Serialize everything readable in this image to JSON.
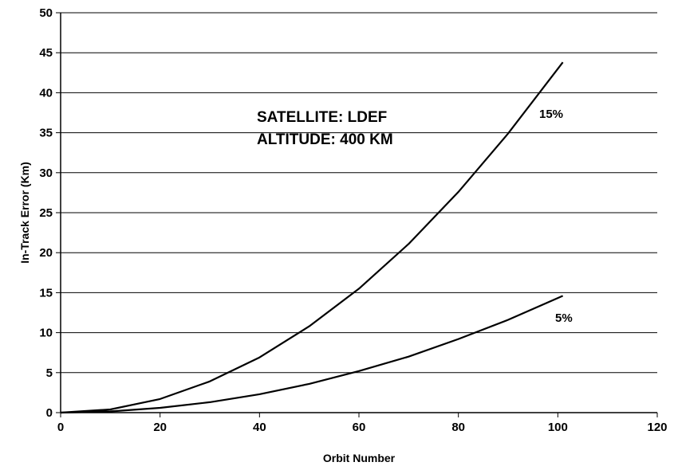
{
  "chart_data": {
    "type": "line",
    "title": "",
    "xlabel": "Orbit Number",
    "ylabel": "In-Track Error (Km)",
    "xlim": [
      0,
      120
    ],
    "ylim": [
      0,
      50
    ],
    "xticks": [
      0,
      20,
      40,
      60,
      80,
      100,
      120
    ],
    "yticks": [
      0,
      5,
      10,
      15,
      20,
      25,
      30,
      35,
      40,
      45,
      50
    ],
    "grid": "horizontal",
    "annotations": [
      "SATELLITE:  LDEF",
      "ALTITUDE: 400 KM"
    ],
    "series": [
      {
        "name": "15%",
        "x": [
          0,
          10,
          20,
          30,
          40,
          50,
          60,
          70,
          80,
          90,
          101
        ],
        "y": [
          0,
          0.4,
          1.7,
          3.9,
          6.9,
          10.8,
          15.5,
          21.1,
          27.6,
          34.9,
          43.8
        ]
      },
      {
        "name": "5%",
        "x": [
          0,
          10,
          20,
          30,
          40,
          50,
          60,
          70,
          80,
          90,
          101
        ],
        "y": [
          0,
          0.15,
          0.6,
          1.3,
          2.3,
          3.6,
          5.2,
          7.0,
          9.2,
          11.6,
          14.6
        ]
      }
    ],
    "colors": {
      "line": "#000000",
      "grid": "#000000",
      "background": "#ffffff"
    }
  }
}
